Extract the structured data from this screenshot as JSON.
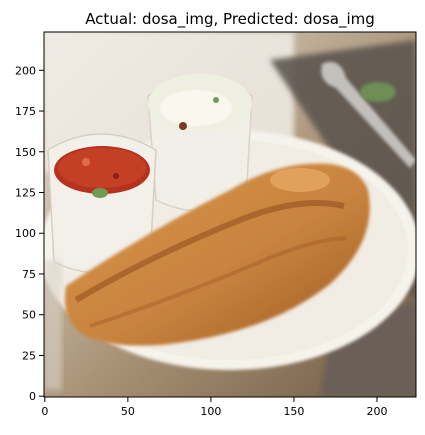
{
  "title": "Actual: dosa_img, Predicted: dosa_img",
  "chart_data": {
    "type": "image",
    "title": "Actual: dosa_img, Predicted: dosa_img",
    "image_width": 224,
    "image_height": 224,
    "xlim": [
      -0.5,
      223.5
    ],
    "ylim": [
      223.5,
      -0.5
    ],
    "xticks": [
      0,
      50,
      100,
      150,
      200
    ],
    "yticks": [
      0,
      25,
      50,
      75,
      100,
      125,
      150,
      175,
      200
    ],
    "image_description": "food-photo",
    "colors": {
      "background": "#ffffff",
      "axis": "#000000",
      "table_wood": "#8a7358",
      "plate": "#f6f2ec",
      "dosa": "#d9954a",
      "dosa_dark": "#a05a22",
      "salsa": "#b6321f",
      "cup": "#f2eee8",
      "chutney": "#eef0df",
      "cloth": "#5d5650",
      "spoon": "#bdbab5",
      "leaf": "#6f9b57"
    }
  }
}
